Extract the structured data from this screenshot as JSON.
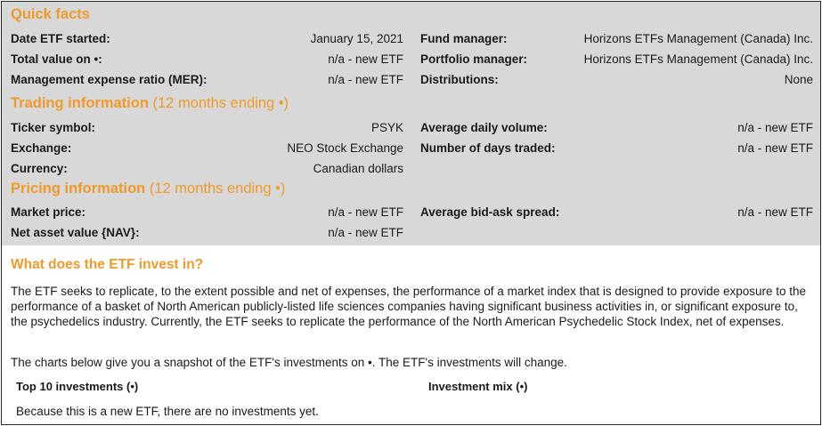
{
  "quick_facts": {
    "title": "Quick facts",
    "left": [
      {
        "label": "Date ETF started:",
        "value": "January 15, 2021"
      },
      {
        "label": "Total value on •:",
        "value": "n/a - new ETF"
      },
      {
        "label": "Management expense ratio (MER):",
        "value": "n/a - new ETF"
      }
    ],
    "right": [
      {
        "label": "Fund manager:",
        "value": "Horizons ETFs Management (Canada) Inc."
      },
      {
        "label": "Portfolio manager:",
        "value": "Horizons ETFs Management (Canada) Inc."
      },
      {
        "label": "Distributions:",
        "value": "None"
      }
    ]
  },
  "trading": {
    "title": "Trading information",
    "subtitle": "(12 months ending •)",
    "left": [
      {
        "label": "Ticker symbol:",
        "value": "PSYK"
      },
      {
        "label": "Exchange:",
        "value": "NEO Stock Exchange"
      },
      {
        "label": "Currency:",
        "value": "Canadian dollars"
      }
    ],
    "right": [
      {
        "label": "Average daily volume:",
        "value": "n/a - new ETF"
      },
      {
        "label": "Number of days traded:",
        "value": "n/a - new ETF"
      }
    ]
  },
  "pricing": {
    "title": "Pricing information",
    "subtitle": "(12 months ending •)",
    "left": [
      {
        "label": "Market price:",
        "value": "n/a - new ETF"
      },
      {
        "label": "Net asset value {NAV}:",
        "value": "n/a - new ETF"
      }
    ],
    "right": [
      {
        "label": "Average bid-ask spread:",
        "value": "n/a - new ETF"
      }
    ]
  },
  "invest": {
    "title": "What does the ETF invest in?",
    "paragraph1": "The ETF seeks to replicate, to the extent possible and net of expenses, the performance of a market index that is designed to provide exposure to the performance of a basket of North American publicly-listed life sciences companies having significant business activities in, or significant exposure to, the psychedelics industry. Currently, the ETF seeks to replicate the performance of the North American Psychedelic Stock Index, net of expenses.",
    "paragraph2": "The charts below give you a snapshot of the ETF's investments on •. The ETF's investments will change.",
    "top10_label": "Top 10 investments (•)",
    "mix_label": "Investment mix (•)",
    "note": "Because this is a new ETF, there are no investments yet."
  }
}
